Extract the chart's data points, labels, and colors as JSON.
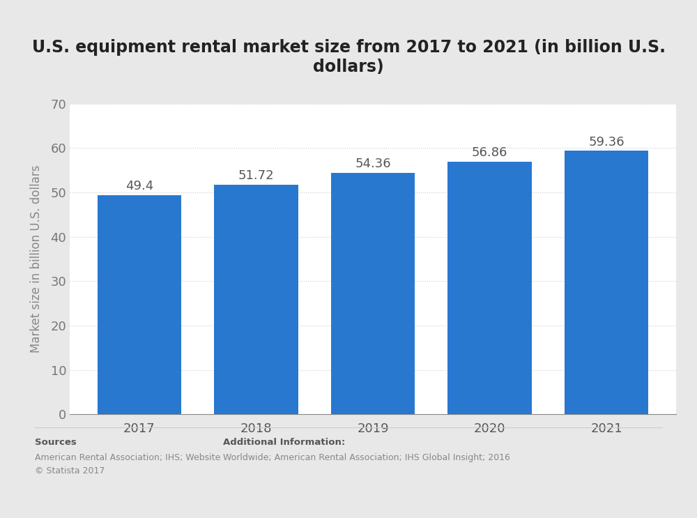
{
  "title": "U.S. equipment rental market size from 2017 to 2021 (in billion U.S.\ndollars)",
  "categories": [
    "2017",
    "2018",
    "2019",
    "2020",
    "2021"
  ],
  "values": [
    49.4,
    51.72,
    54.36,
    56.86,
    59.36
  ],
  "bar_color": "#2878d0",
  "plot_bg_color": "#ffffff",
  "outer_bg_color": "#e8e8e8",
  "ylabel": "Market size in billion U.S. dollars",
  "ylim": [
    0,
    70
  ],
  "yticks": [
    0,
    10,
    20,
    30,
    40,
    50,
    60,
    70
  ],
  "title_fontsize": 17,
  "label_fontsize": 12,
  "tick_fontsize": 13,
  "bar_label_fontsize": 13,
  "bar_width": 0.72,
  "sources_label": "Sources",
  "sources_body": "American Rental Association; IHS; Website\n© Statista 2017",
  "additional_label": "Additional Information:",
  "additional_body": "Worldwide; American Rental Association; IHS Global Insight; 2016"
}
